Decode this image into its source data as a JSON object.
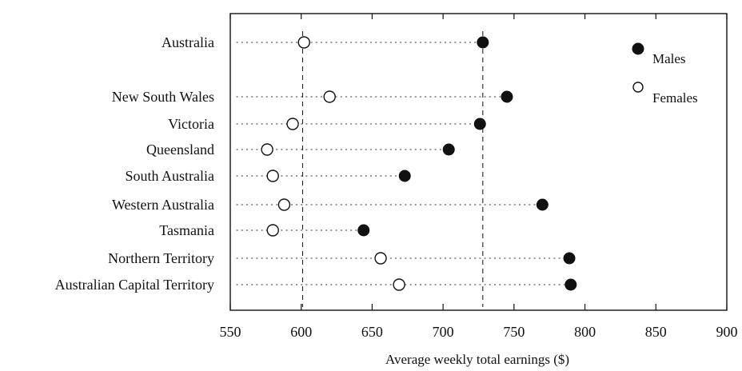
{
  "chart_data": {
    "type": "scatter",
    "subtype": "dot-plot",
    "xlabel": "Average weekly total earnings ($)",
    "xlim": [
      550,
      900
    ],
    "xticks": [
      550,
      600,
      650,
      700,
      750,
      800,
      850,
      900
    ],
    "categories": [
      "Australia",
      "New South Wales",
      "Victoria",
      "Queensland",
      "South Australia",
      "Western Australia",
      "Tasmania",
      "Northern Territory",
      "Australian Capital Territory"
    ],
    "series": [
      {
        "name": "Males",
        "marker": "filled-circle",
        "values": [
          728,
          745,
          726,
          704,
          673,
          770,
          644,
          789,
          790
        ]
      },
      {
        "name": "Females",
        "marker": "open-circle",
        "values": [
          602,
          620,
          594,
          576,
          580,
          588,
          580,
          656,
          669
        ]
      }
    ],
    "reference_lines": [
      601,
      728
    ],
    "legend_position": "top-right",
    "grid": false
  }
}
